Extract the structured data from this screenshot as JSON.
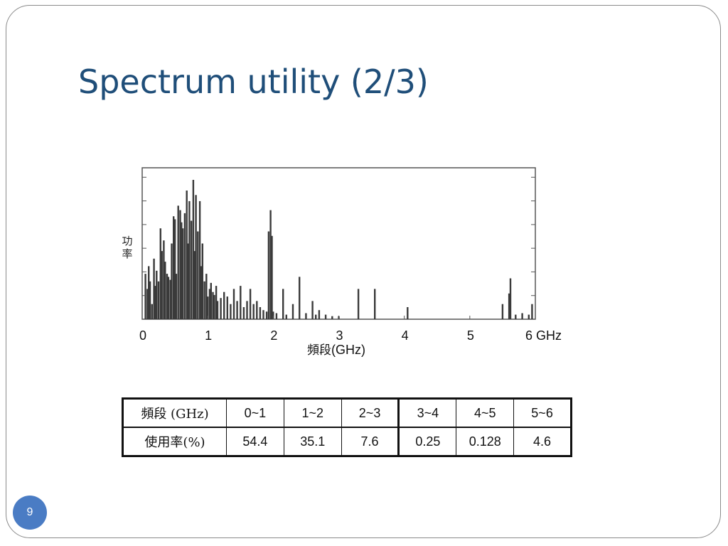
{
  "slide": {
    "title": "Spectrum utility (2/3)",
    "page_number": "9"
  },
  "chart": {
    "ylabel": "功率",
    "xlabel_cn": "頻段",
    "xlabel_unit": "(GHz)",
    "x_ticks": [
      "0",
      "1",
      "2",
      "3",
      "4",
      "5",
      "6 GHz"
    ]
  },
  "chart_data": {
    "type": "bar",
    "title": "",
    "xlabel": "頻段(GHz)",
    "ylabel": "功率",
    "xlim": [
      0,
      6
    ],
    "ylim": [
      0,
      1
    ],
    "grid": false,
    "x": [
      0.05,
      0.08,
      0.1,
      0.12,
      0.15,
      0.18,
      0.2,
      0.22,
      0.25,
      0.28,
      0.3,
      0.33,
      0.35,
      0.38,
      0.4,
      0.43,
      0.45,
      0.48,
      0.5,
      0.52,
      0.55,
      0.58,
      0.6,
      0.62,
      0.65,
      0.68,
      0.7,
      0.72,
      0.75,
      0.78,
      0.8,
      0.82,
      0.85,
      0.88,
      0.9,
      0.92,
      0.95,
      0.98,
      1.0,
      1.03,
      1.05,
      1.08,
      1.1,
      1.13,
      1.15,
      1.2,
      1.25,
      1.3,
      1.35,
      1.4,
      1.45,
      1.5,
      1.55,
      1.6,
      1.65,
      1.7,
      1.75,
      1.8,
      1.85,
      1.9,
      1.93,
      1.96,
      1.98,
      2.0,
      2.05,
      2.15,
      2.2,
      2.3,
      2.4,
      2.5,
      2.6,
      2.65,
      2.7,
      2.8,
      2.9,
      3.0,
      3.3,
      3.55,
      4.05,
      5.5,
      5.6,
      5.62,
      5.7,
      5.8,
      5.9,
      5.95
    ],
    "values": [
      0.3,
      0.2,
      0.35,
      0.25,
      0.1,
      0.4,
      0.22,
      0.32,
      0.25,
      0.6,
      0.45,
      0.52,
      0.38,
      0.3,
      0.28,
      0.26,
      0.5,
      0.68,
      0.66,
      0.3,
      0.75,
      0.72,
      0.64,
      0.6,
      0.7,
      0.85,
      0.5,
      0.78,
      0.65,
      0.92,
      0.45,
      0.82,
      0.58,
      0.78,
      0.35,
      0.5,
      0.25,
      0.3,
      0.15,
      0.2,
      0.24,
      0.18,
      0.16,
      0.22,
      0.12,
      0.14,
      0.18,
      0.15,
      0.1,
      0.2,
      0.12,
      0.22,
      0.08,
      0.12,
      0.2,
      0.1,
      0.12,
      0.08,
      0.06,
      0.05,
      0.58,
      0.72,
      0.55,
      0.05,
      0.04,
      0.2,
      0.03,
      0.1,
      0.28,
      0.04,
      0.12,
      0.03,
      0.06,
      0.03,
      0.02,
      0.02,
      0.2,
      0.2,
      0.08,
      0.1,
      0.17,
      0.27,
      0.03,
      0.04,
      0.03,
      0.1
    ]
  },
  "table": {
    "rows": [
      [
        "頻段 (GHz)",
        "0~1",
        "1~2",
        "2~3",
        "3~4",
        "4~5",
        "5~6"
      ],
      [
        "使用率(%)",
        "54.4",
        "35.1",
        "7.6",
        "0.25",
        "0.128",
        "4.6"
      ]
    ]
  },
  "colors": {
    "title": "#1f4e79",
    "badge": "#4a7cc4",
    "bars": "#3a3a3a"
  }
}
